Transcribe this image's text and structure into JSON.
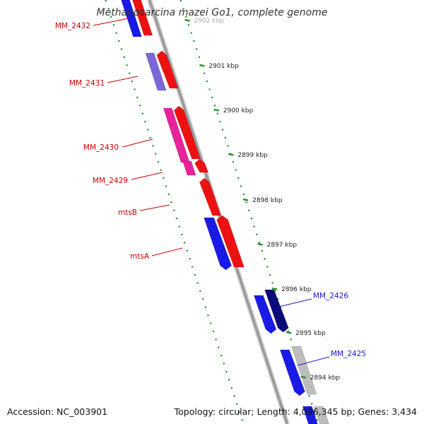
{
  "title": "Methanosarcina mazei Go1, complete genome",
  "footer": {
    "accession": "Accession: NC_003901",
    "summary": "Topology: circular; Length: 4,096,345 bp; Genes: 3,434"
  },
  "colors": {
    "backbone": "#9a9a9a",
    "tick": "#1a8a1a",
    "red_forward": "#ee1111",
    "magenta": "#e8239a",
    "violet": "#7b68d8",
    "blue": "#1a1ae6",
    "navy": "#0a0a7a",
    "grey": "#bdbdbd",
    "red_label": "#cc0000",
    "blue_label": "#1a1ad0"
  },
  "ticks": [
    {
      "label": "2902 kbp",
      "faded": true
    },
    {
      "label": "2901 kbp"
    },
    {
      "label": "2900 kbp"
    },
    {
      "label": "2899 kbp"
    },
    {
      "label": "2898 kbp"
    },
    {
      "label": "2897 kbp"
    },
    {
      "label": "2896 kbp"
    },
    {
      "label": "2895 kbp"
    },
    {
      "label": "2894 kbp"
    }
  ],
  "gene_labels": [
    {
      "text": "MM_2432",
      "color": "red"
    },
    {
      "text": "MM_2431",
      "color": "red"
    },
    {
      "text": "MM_2430",
      "color": "red"
    },
    {
      "text": "MM_2429",
      "color": "red"
    },
    {
      "text": "mtsB",
      "color": "red"
    },
    {
      "text": "mtsA",
      "color": "red"
    },
    {
      "text": "MM_2426",
      "color": "blue"
    },
    {
      "text": "MM_2425",
      "color": "blue"
    }
  ]
}
